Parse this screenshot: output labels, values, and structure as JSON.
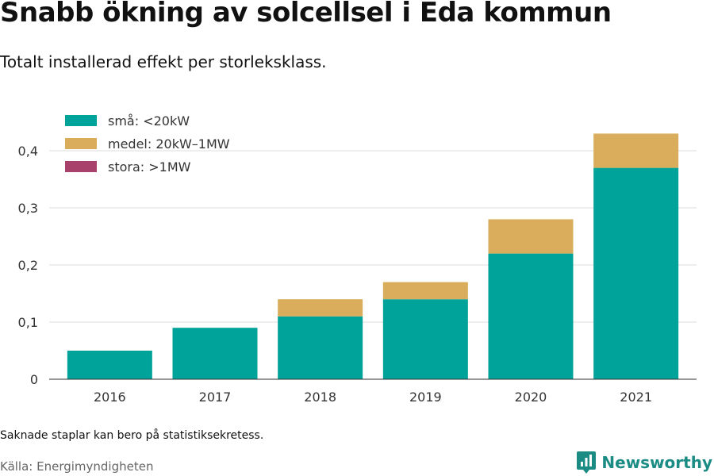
{
  "title": "Snabb ökning av solcellsel i Eda kommun",
  "subtitle": "Totalt installerad effekt per storleksklass.",
  "note": "Saknade staplar kan bero på statistiksekretess.",
  "source": "Källa: Energimyndigheten",
  "brand": "Newsworthy",
  "colors": {
    "sma": "#00a39a",
    "medel": "#d9ad5b",
    "stora": "#a8416b",
    "grid": "#dddddd",
    "brand": "#1a8c84"
  },
  "chart_data": {
    "type": "bar",
    "stacked": true,
    "categories": [
      "2016",
      "2017",
      "2018",
      "2019",
      "2020",
      "2021"
    ],
    "series": [
      {
        "name": "små: <20kW",
        "color": "#00a39a",
        "values": [
          0.05,
          0.09,
          0.11,
          0.14,
          0.22,
          0.37
        ]
      },
      {
        "name": "medel: 20kW–1MW",
        "color": "#d9ad5b",
        "values": [
          0,
          0,
          0.03,
          0.03,
          0.06,
          0.06
        ]
      },
      {
        "name": "stora: >1MW",
        "color": "#a8416b",
        "values": [
          0,
          0,
          0,
          0,
          0,
          0
        ]
      }
    ],
    "yticks": [
      0,
      0.1,
      0.2,
      0.3,
      0.4
    ],
    "ytick_labels": [
      "0",
      "0,1",
      "0,2",
      "0,3",
      "0,4"
    ],
    "ylim": [
      0,
      0.4
    ],
    "grid": true,
    "legend_position": "top-left"
  }
}
